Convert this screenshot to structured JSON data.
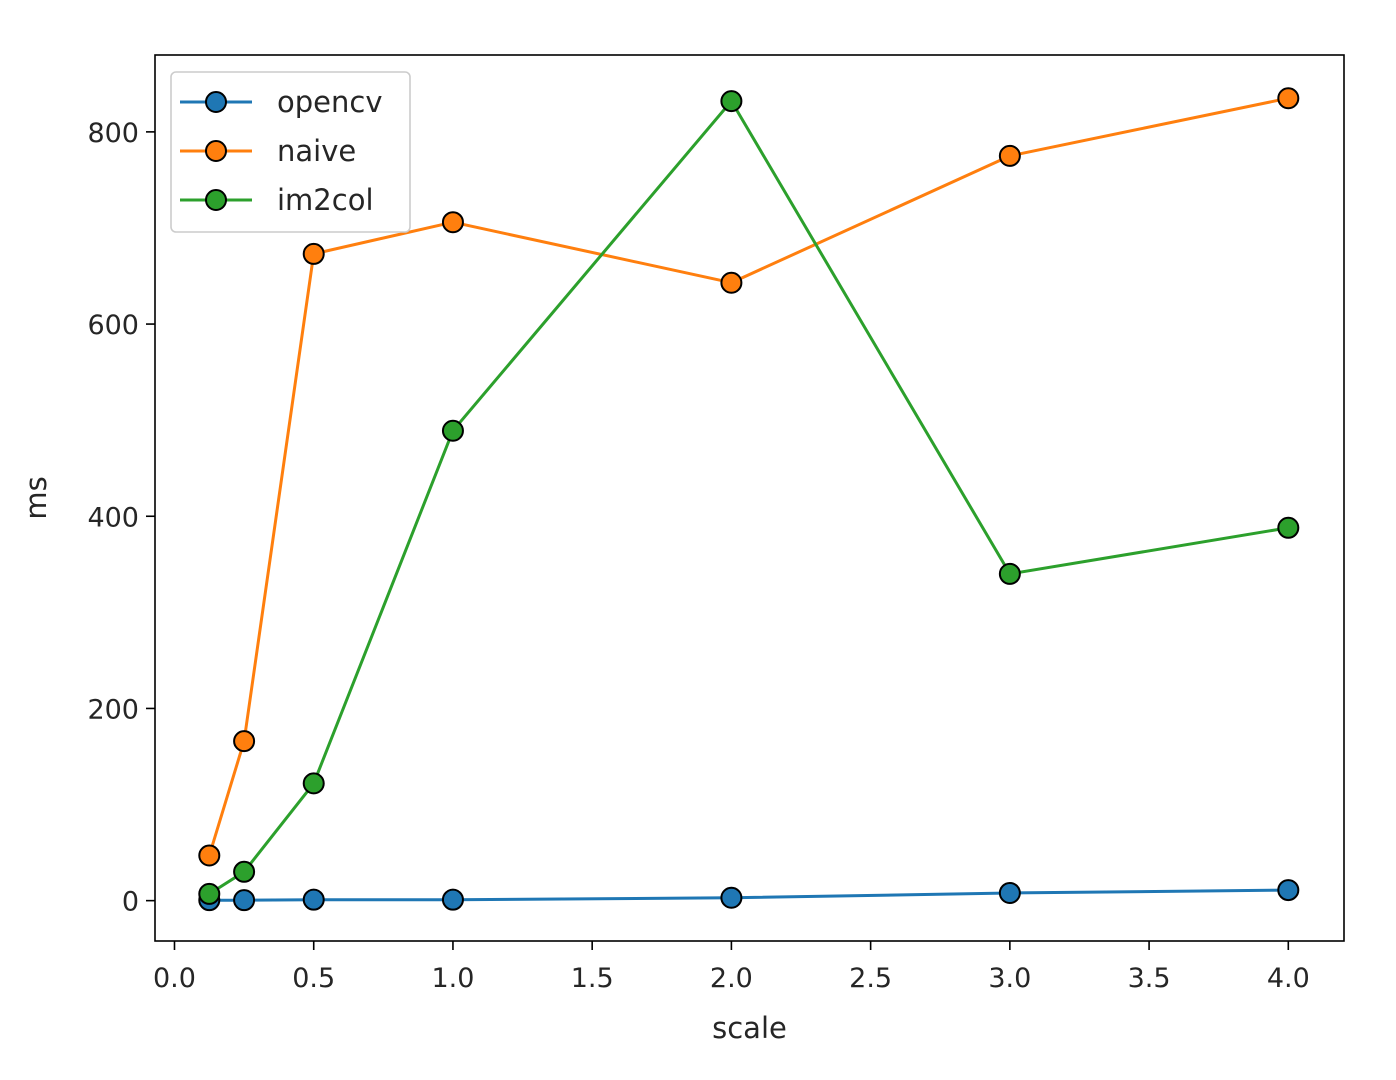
{
  "chart_data": {
    "type": "line",
    "title": "",
    "xlabel": "scale",
    "ylabel": "ms",
    "xlim": [
      -0.07,
      4.2
    ],
    "ylim": [
      -42,
      880
    ],
    "xticks": [
      0.0,
      0.5,
      1.0,
      1.5,
      2.0,
      2.5,
      3.0,
      3.5,
      4.0
    ],
    "xtick_labels": [
      "0.0",
      "0.5",
      "1.0",
      "1.5",
      "2.0",
      "2.5",
      "3.0",
      "3.5",
      "4.0"
    ],
    "yticks": [
      0,
      200,
      400,
      600,
      800
    ],
    "ytick_labels": [
      "0",
      "200",
      "400",
      "600",
      "800"
    ],
    "grid": false,
    "legend_position": "top-left",
    "x": [
      0.125,
      0.25,
      0.5,
      1.0,
      2.0,
      3.0,
      4.0
    ],
    "series": [
      {
        "name": "opencv",
        "color": "#1f77b4",
        "values": [
          0.5,
          0.5,
          1,
          1,
          3,
          8,
          11
        ]
      },
      {
        "name": "naive",
        "color": "#ff7f0e",
        "values": [
          47,
          166,
          673,
          706,
          643,
          775,
          835
        ]
      },
      {
        "name": "im2col",
        "color": "#2ca02c",
        "values": [
          7,
          30,
          122,
          489,
          832,
          340,
          388
        ]
      }
    ]
  }
}
